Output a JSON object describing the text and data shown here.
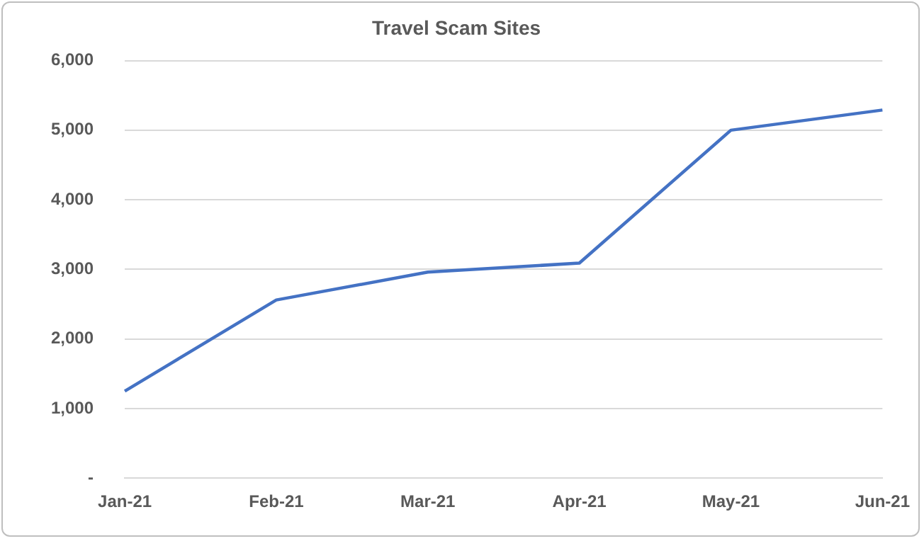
{
  "chart_data": {
    "type": "line",
    "title": "Travel Scam Sites",
    "categories": [
      "Jan-21",
      "Feb-21",
      "Mar-21",
      "Apr-21",
      "May-21",
      "Jun-21"
    ],
    "series": [
      {
        "color": "#4472c4",
        "values": [
          1250,
          2560,
          2960,
          3090,
          5000,
          5290
        ]
      }
    ],
    "ylim": [
      0,
      6000
    ],
    "yticks": [
      {
        "value": 0,
        "label": "-"
      },
      {
        "value": 1000,
        "label": "1,000"
      },
      {
        "value": 2000,
        "label": "2,000"
      },
      {
        "value": 3000,
        "label": "3,000"
      },
      {
        "value": 4000,
        "label": "4,000"
      },
      {
        "value": 5000,
        "label": "5,000"
      },
      {
        "value": 6000,
        "label": "6,000"
      }
    ],
    "grid": "y",
    "legend": false,
    "marker": "none",
    "line_style": "solid"
  }
}
